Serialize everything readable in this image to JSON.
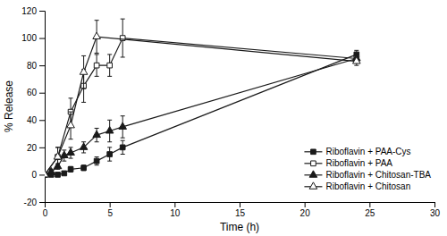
{
  "chart_data": {
    "type": "line",
    "xlabel": "Time (h)",
    "ylabel": "% Release",
    "xlim": [
      0,
      30
    ],
    "ylim": [
      -20,
      120
    ],
    "xticks": [
      0,
      5,
      10,
      15,
      20,
      25,
      30
    ],
    "yticks": [
      -20,
      0,
      20,
      40,
      60,
      80,
      100,
      120
    ],
    "grid": false,
    "legend": "lower right",
    "series": [
      {
        "name": "Riboflavin + PAA-Cys",
        "color": "#1a1a1a",
        "marker": "square",
        "x": [
          0,
          0.5,
          1,
          1.5,
          2,
          3,
          4,
          5,
          6,
          24
        ],
        "values": [
          0,
          0,
          0,
          1,
          4,
          5,
          10,
          15,
          20,
          88
        ],
        "errors": [
          0,
          0.5,
          0.5,
          1,
          2,
          2,
          3,
          5,
          5,
          3
        ]
      },
      {
        "name": "Riboflavin + PAA",
        "color": "#1a1a1a",
        "marker": "square-open",
        "x": [
          0,
          1,
          2,
          3,
          4,
          5,
          6,
          24
        ],
        "values": [
          0,
          13,
          46,
          65,
          80,
          80,
          100,
          85
        ],
        "errors": [
          0,
          7,
          10,
          12,
          8,
          8,
          14,
          3
        ]
      },
      {
        "name": "Riboflavin + Chitosan-TBA",
        "color": "#1a1a1a",
        "marker": "triangle",
        "x": [
          0,
          0.5,
          1,
          1.5,
          2,
          3,
          4,
          5,
          6,
          24
        ],
        "values": [
          0,
          2,
          6,
          14,
          16,
          20,
          29,
          32,
          35,
          85
        ],
        "errors": [
          0,
          2,
          2,
          4,
          4,
          4,
          5,
          8,
          8,
          3
        ]
      },
      {
        "name": "Riboflavin + Chitosan",
        "color": "#1a1a1a",
        "marker": "triangle-open",
        "x": [
          0,
          1,
          2,
          3,
          4,
          24
        ],
        "values": [
          0,
          13,
          36,
          75,
          101,
          83
        ],
        "errors": [
          0,
          7,
          10,
          12,
          12,
          3
        ]
      }
    ]
  }
}
